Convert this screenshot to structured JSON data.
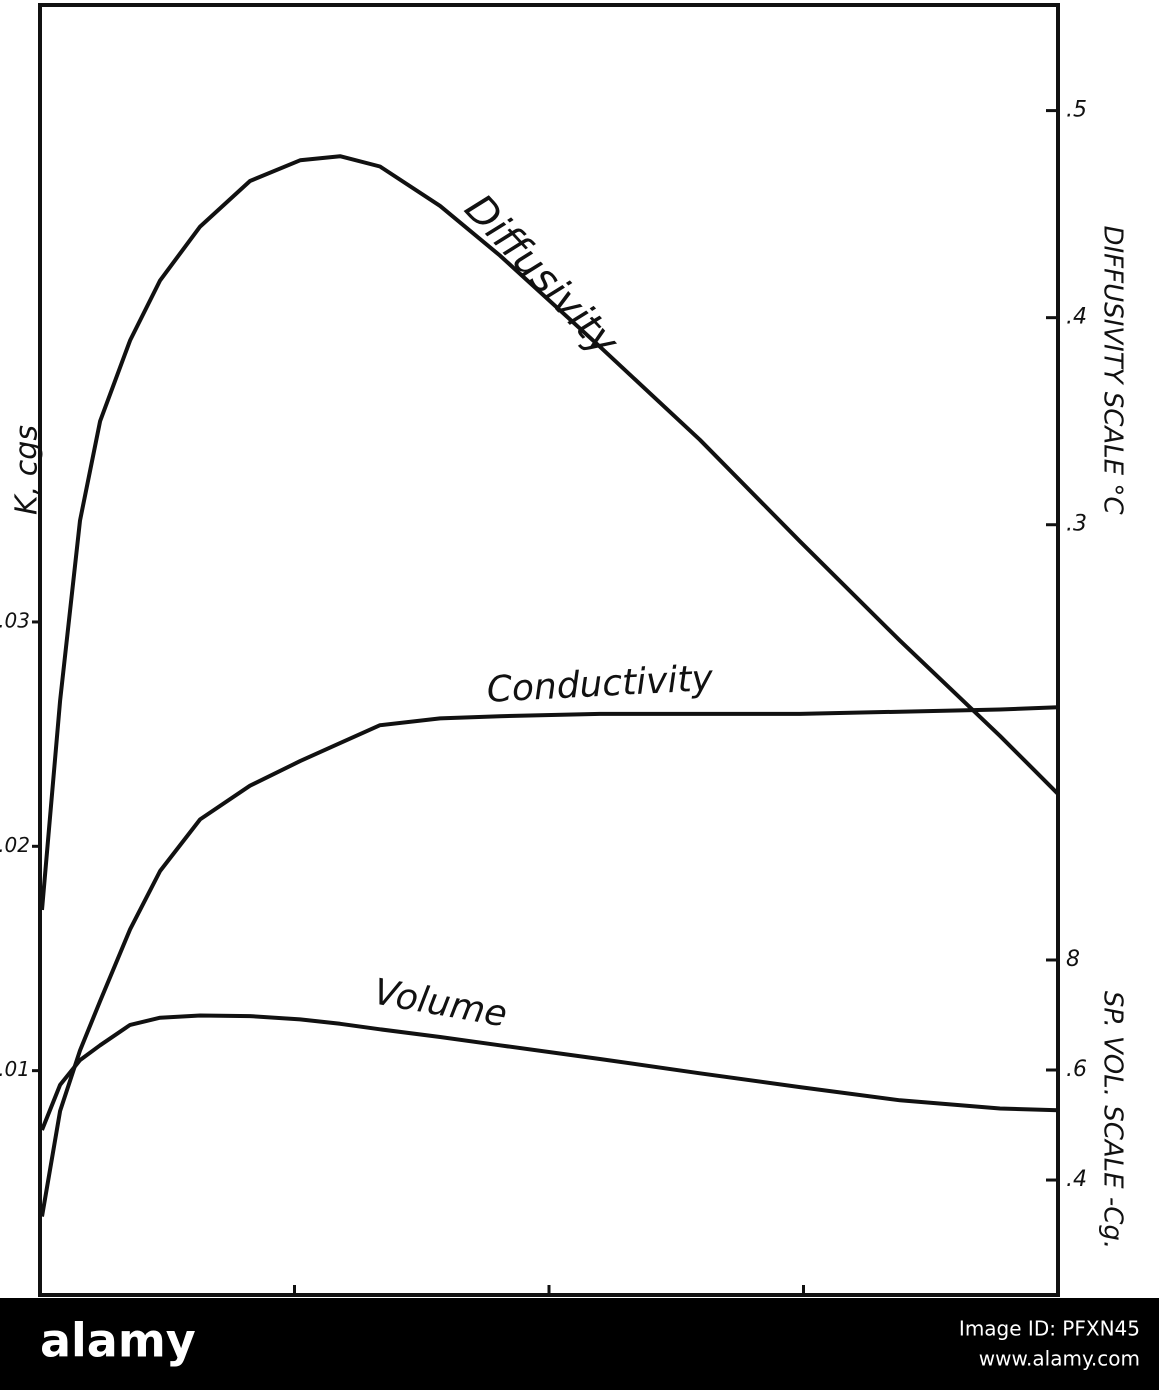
{
  "chart_data": {
    "type": "line",
    "x": [
      0.008,
      0.079,
      0.157,
      0.236,
      0.354,
      0.472,
      0.629,
      0.825,
      1.022,
      1.179,
      1.336,
      1.572,
      1.807,
      2.2,
      2.593,
      2.986,
      3.379,
      3.772,
      4.0
    ],
    "xlim": [
      0,
      4
    ],
    "xticks": [
      1,
      2,
      3
    ],
    "ylabel": "K, cgs",
    "ylim": [
      0,
      0.0575
    ],
    "yticks": [
      {
        "value": 0.01,
        "label": ".01"
      },
      {
        "value": 0.02,
        "label": ".02"
      },
      {
        "value": 0.03,
        "label": ".03"
      }
    ],
    "y2label": "DIFFUSIVITY SCALE °C",
    "y2lim": [
      -0.072,
      0.551
    ],
    "y2ticks": [
      {
        "value": 0.3,
        "label": ".3"
      },
      {
        "value": 0.4,
        "label": ".4"
      },
      {
        "value": 0.5,
        "label": ".5"
      }
    ],
    "y3label": "SP. VOL. SCALE -Cg.",
    "y3lim": [
      0.191,
      2.536
    ],
    "y3ticks": [
      {
        "value": 0.4,
        "label": ".4"
      },
      {
        "value": 0.6,
        "label": ".6"
      },
      {
        "value": 0.8,
        "label": "8"
      }
    ],
    "series": [
      {
        "name": "Diffusivity",
        "axis": "y2",
        "color": "#111111",
        "values": [
          0.114,
          0.215,
          0.302,
          0.35,
          0.389,
          0.418,
          0.444,
          0.466,
          0.476,
          0.478,
          0.473,
          0.454,
          0.43,
          0.386,
          0.341,
          0.292,
          0.244,
          0.198,
          0.17
        ]
      },
      {
        "name": "Conductivity",
        "axis": "y",
        "color": "#111111",
        "values": [
          0.0035,
          0.0082,
          0.0109,
          0.0131,
          0.0163,
          0.0189,
          0.0212,
          0.0227,
          0.0238,
          0.0246,
          0.0254,
          0.0257,
          0.0258,
          0.0259,
          0.0259,
          0.0259,
          0.026,
          0.0261,
          0.0262
        ]
      },
      {
        "name": "Volume",
        "axis": "y3",
        "color": "#111111",
        "values": [
          0.491,
          0.573,
          0.618,
          0.645,
          0.682,
          0.695,
          0.699,
          0.698,
          0.692,
          0.684,
          0.674,
          0.66,
          0.645,
          0.62,
          0.594,
          0.569,
          0.545,
          0.53,
          0.527
        ]
      }
    ]
  },
  "watermark": {
    "logo": "alamy",
    "image_id": "Image ID: PFXN45",
    "url": "www.alamy.com"
  }
}
